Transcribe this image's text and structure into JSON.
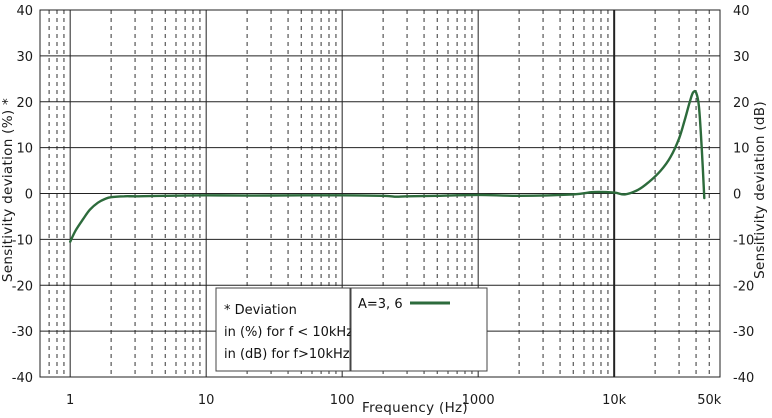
{
  "chart_data": {
    "type": "line",
    "xscale": "log",
    "xlim": [
      0.6,
      60000
    ],
    "ylim": [
      -40,
      40
    ],
    "x_ticks": [
      {
        "v": 1,
        "label": "1"
      },
      {
        "v": 10,
        "label": "10"
      },
      {
        "v": 100,
        "label": "100"
      },
      {
        "v": 1000,
        "label": "1000"
      },
      {
        "v": 10000,
        "label": "10k"
      },
      {
        "v": 50000,
        "label": "50k"
      }
    ],
    "y_ticks": [
      40,
      30,
      20,
      10,
      0,
      -10,
      -20,
      -30,
      -40
    ],
    "xlabel": "Frequency (Hz)",
    "ylabel_left": "Sensitivity deviation (%) *",
    "ylabel_right": "Sensitivity deviation (dB)",
    "grid": true,
    "legend": {
      "label": "A=3, 6",
      "position": "bottom-center"
    },
    "note_lines": [
      "* Deviation",
      "in (%) for f < 10kHz",
      "in (dB) for f>10kHz"
    ],
    "series": [
      {
        "name": "A=3, 6",
        "color": "#2d6b3c",
        "x": [
          1,
          1.1,
          1.25,
          1.4,
          1.6,
          1.8,
          2,
          2.5,
          3,
          5,
          10,
          20,
          50,
          100,
          200,
          250,
          300,
          500,
          1000,
          2000,
          5000,
          7000,
          10000,
          12000,
          15000,
          18000,
          22000,
          26000,
          30000,
          33000,
          36000,
          38000,
          40000,
          42000,
          44000,
          46000
        ],
        "y": [
          -10.5,
          -8,
          -5.5,
          -3.5,
          -2,
          -1.2,
          -0.8,
          -0.6,
          -0.6,
          -0.5,
          -0.4,
          -0.45,
          -0.4,
          -0.4,
          -0.5,
          -0.7,
          -0.6,
          -0.5,
          -0.3,
          -0.5,
          -0.2,
          0.3,
          0.2,
          -0.2,
          0.8,
          2.5,
          5,
          8,
          12,
          16,
          20,
          22,
          22,
          19,
          10,
          -1
        ]
      }
    ]
  }
}
